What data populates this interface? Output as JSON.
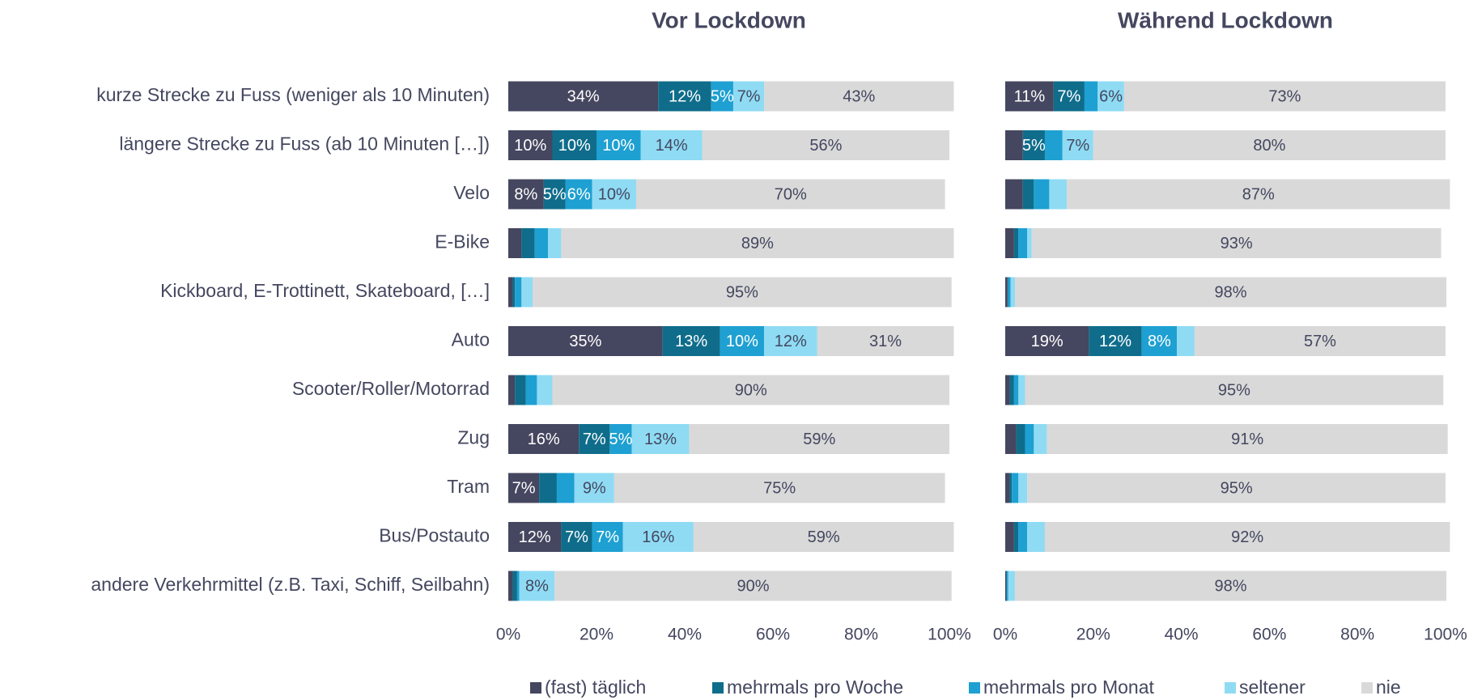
{
  "chart_data": {
    "type": "stacked-bar-horizontal",
    "categories": [
      "kurze Strecke zu Fuss (weniger als 10 Minuten)",
      "längere Strecke zu Fuss (ab 10 Minuten […])",
      "Velo",
      "E-Bike",
      "Kickboard, E-Trottinett, Skateboard, […]",
      "Auto",
      "Scooter/Roller/Motorrad",
      "Zug",
      "Tram",
      "Bus/Postauto",
      "andere Verkehrmittel (z.B. Taxi, Schiff, Seilbahn)"
    ],
    "series": [
      {
        "name": "(fast) täglich",
        "color": "#45465f"
      },
      {
        "name": "mehrmals pro Woche",
        "color": "#0f6d8b"
      },
      {
        "name": "mehrmals pro Monat",
        "color": "#1ea0d2"
      },
      {
        "name": "seltener",
        "color": "#8fdbf4"
      },
      {
        "name": "nie",
        "color": "#d9d9d9"
      }
    ],
    "xlim": [
      0,
      100
    ],
    "xticks": [
      {
        "value": 0,
        "label": "0%"
      },
      {
        "value": 20,
        "label": "20%"
      },
      {
        "value": 40,
        "label": "40%"
      },
      {
        "value": 60,
        "label": "60%"
      },
      {
        "value": 80,
        "label": "80%"
      },
      {
        "value": 100,
        "label": "100%"
      }
    ],
    "panels": [
      {
        "title": "Vor Lockdown",
        "series": [
          {
            "values": [
              34,
              10,
              8,
              3,
              1,
              35,
              1.5,
              16,
              7,
              12,
              1
            ],
            "value_labels": [
              "34%",
              "10%",
              "8%",
              null,
              null,
              "35%",
              null,
              "16%",
              "7%",
              "12%",
              null
            ]
          },
          {
            "values": [
              12,
              10,
              5,
              3,
              0.5,
              13,
              2.5,
              7,
              4,
              7,
              1
            ],
            "value_labels": [
              "12%",
              "10%",
              "5%",
              null,
              null,
              "13%",
              null,
              "7%",
              null,
              "7%",
              null
            ]
          },
          {
            "values": [
              5,
              10,
              6,
              3,
              1.5,
              10,
              2.5,
              5,
              4,
              7,
              0.5
            ],
            "value_labels": [
              "5%",
              "10%",
              "6%",
              null,
              null,
              "10%",
              null,
              "5%",
              null,
              "7%",
              null
            ]
          },
          {
            "values": [
              7,
              14,
              10,
              3,
              2.5,
              12,
              3.5,
              13,
              9,
              16,
              8
            ],
            "value_labels": [
              "7%",
              "14%",
              "10%",
              null,
              null,
              "12%",
              null,
              "13%",
              "9%",
              "16%",
              "8%"
            ]
          },
          {
            "values": [
              43,
              56,
              70,
              89,
              95,
              31,
              90,
              59,
              75,
              59,
              90
            ],
            "value_labels": [
              "43%",
              "56%",
              "70%",
              "89%",
              "95%",
              "31%",
              "90%",
              "59%",
              "75%",
              "59%",
              "90%"
            ]
          }
        ]
      },
      {
        "title": "Während Lockdown",
        "series": [
          {
            "values": [
              11,
              4,
              4,
              2,
              0.5,
              19,
              1,
              2.5,
              1,
              2,
              0.2
            ],
            "value_labels": [
              "11%",
              null,
              null,
              null,
              null,
              "19%",
              null,
              null,
              null,
              null,
              null
            ]
          },
          {
            "values": [
              7,
              5,
              2.5,
              1,
              0.2,
              12,
              1,
              2,
              0.5,
              1,
              0.2
            ],
            "value_labels": [
              "7%",
              "5%",
              null,
              null,
              null,
              "12%",
              null,
              null,
              null,
              null,
              null
            ]
          },
          {
            "values": [
              3,
              4,
              3.5,
              2,
              0.5,
              8,
              1,
              2,
              1.5,
              2,
              0.3
            ],
            "value_labels": [
              null,
              null,
              null,
              null,
              null,
              "8%",
              null,
              null,
              null,
              null,
              null
            ]
          },
          {
            "values": [
              6,
              7,
              4,
              1,
              1,
              4,
              1.5,
              3,
              2,
              4,
              1.5
            ],
            "value_labels": [
              "6%",
              "7%",
              null,
              null,
              null,
              null,
              null,
              null,
              null,
              null,
              null
            ]
          },
          {
            "values": [
              73,
              80,
              87,
              93,
              98,
              57,
              95,
              91,
              95,
              92,
              98
            ],
            "value_labels": [
              "73%",
              "80%",
              "87%",
              "93%",
              "98%",
              "57%",
              "95%",
              "91%",
              "95%",
              "92%",
              "98%"
            ]
          }
        ]
      }
    ]
  }
}
